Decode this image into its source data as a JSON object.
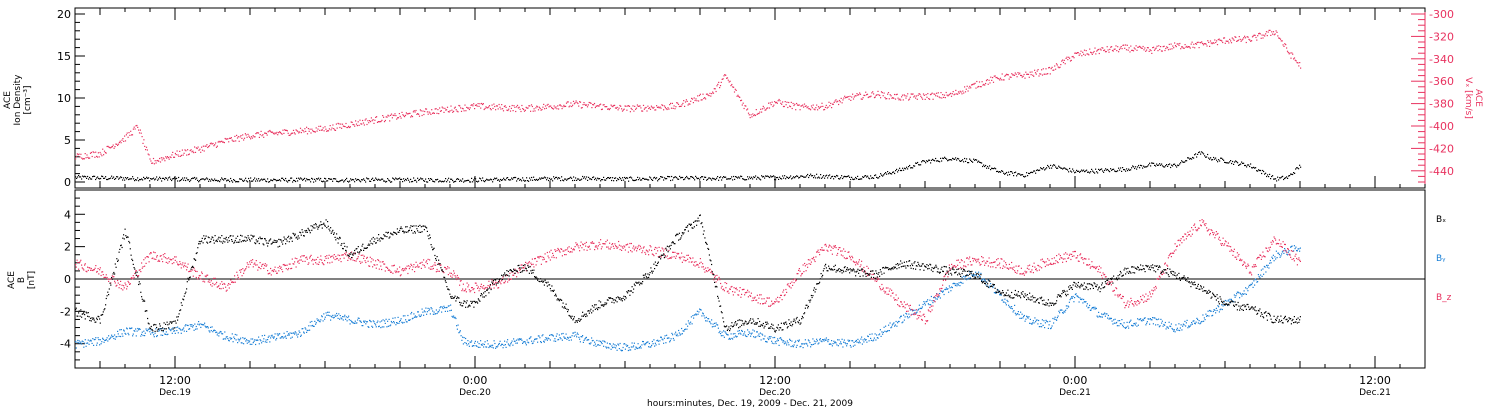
{
  "colors": {
    "black": "#000000",
    "red": "#e8325f",
    "blue": "#1a7fd6"
  },
  "time_axis": {
    "ticks": [
      {
        "t": 12,
        "line1": "12:00",
        "line2": "Dec.19"
      },
      {
        "t": 24,
        "line1": "0:00",
        "line2": "Dec.20"
      },
      {
        "t": 36,
        "line1": "12:00",
        "line2": "Dec.20"
      },
      {
        "t": 48,
        "line1": "0:00",
        "line2": "Dec.21"
      },
      {
        "t": 60,
        "line1": "12:00",
        "line2": "Dec.21"
      }
    ],
    "title": "hours:minutes, Dec. 19, 2009 - Dec. 21, 2009",
    "range_hours": [
      8.0,
      62.0
    ]
  },
  "chart_data": [
    {
      "type": "scatter",
      "panel": "top",
      "ylabel_left": [
        "ACE",
        "Ion Density",
        "[cm⁻³]"
      ],
      "ylabel_right": [
        "ACE",
        "Vₓ [km/s]"
      ],
      "ylim_left": [
        0,
        20
      ],
      "yticks_left": [
        0,
        5,
        10,
        15,
        20
      ],
      "ylim_right": [
        -450,
        -300
      ],
      "yticks_right": [
        -440,
        -420,
        -400,
        -380,
        -360,
        -340,
        -320,
        -300
      ],
      "series": [
        {
          "axis": "left",
          "color": "#000000",
          "x": [
            8,
            10,
            12,
            14,
            16,
            18,
            20,
            22,
            24,
            26,
            28,
            30,
            32,
            34,
            36,
            37.5,
            39,
            40,
            41,
            41.5,
            42,
            43,
            44,
            45,
            46,
            47,
            48,
            49,
            50,
            51,
            52,
            53,
            53.5,
            54,
            55,
            56,
            56.5,
            57
          ],
          "y": [
            0.6,
            0.5,
            0.4,
            0.3,
            0.3,
            0.3,
            0.3,
            0.3,
            0.3,
            0.4,
            0.5,
            0.4,
            0.5,
            0.5,
            0.6,
            0.8,
            0.6,
            0.7,
            1.5,
            2.0,
            2.5,
            2.9,
            2.5,
            1.2,
            0.9,
            2.0,
            1.3,
            1.4,
            1.6,
            2.1,
            2.0,
            3.5,
            2.8,
            2.6,
            2.0,
            0.4,
            0.6,
            2.0
          ]
        },
        {
          "axis": "right",
          "color": "#e8325f",
          "x": [
            8,
            9,
            10,
            10.5,
            11,
            12,
            13,
            14,
            15,
            16,
            18,
            20,
            22,
            24,
            26,
            28,
            30,
            32,
            33.5,
            34,
            35,
            36,
            37,
            38,
            39,
            40,
            41,
            42,
            43,
            44,
            45,
            46,
            47,
            48,
            49,
            50,
            51,
            52,
            53,
            54,
            55,
            56,
            56.5,
            57
          ],
          "y": [
            -427,
            -424,
            -410,
            -400,
            -432,
            -425,
            -420,
            -413,
            -408,
            -406,
            -402,
            -394,
            -387,
            -382,
            -384,
            -380,
            -384,
            -382,
            -370,
            -355,
            -390,
            -378,
            -383,
            -382,
            -374,
            -371,
            -374,
            -373,
            -372,
            -363,
            -356,
            -354,
            -350,
            -336,
            -332,
            -330,
            -332,
            -328,
            -327,
            -323,
            -322,
            -315,
            -333,
            -346
          ]
        }
      ]
    },
    {
      "type": "scatter",
      "panel": "bottom",
      "ylabel_left": [
        "ACE",
        "B",
        "[nT]"
      ],
      "ylim": [
        -5.5,
        5.5
      ],
      "yticks": [
        -4,
        -2,
        0,
        2,
        4
      ],
      "legend": [
        "Bₓ",
        "Bᵧ",
        "B_z"
      ],
      "legend_placement": "right",
      "series": [
        {
          "name": "Bₓ",
          "color": "#000000",
          "x": [
            8,
            9,
            10,
            11,
            12,
            13,
            14,
            15,
            16,
            17,
            18,
            19,
            20,
            21,
            22,
            23,
            23.5,
            24,
            25,
            26,
            27,
            28,
            29,
            30,
            31,
            32,
            33,
            34,
            35,
            36,
            37,
            38,
            39,
            40,
            41,
            42,
            43,
            44,
            45,
            46,
            47,
            48,
            49,
            50,
            51,
            52,
            53,
            54,
            55,
            56,
            57
          ],
          "y": [
            -2.0,
            -2.5,
            3.0,
            -3.0,
            -2.8,
            2.5,
            2.5,
            2.5,
            2.2,
            2.8,
            3.5,
            1.5,
            2.5,
            3.0,
            3.2,
            -1.0,
            -1.5,
            -1.5,
            0.2,
            0.8,
            -0.5,
            -2.5,
            -1.5,
            -1.0,
            0.5,
            2.5,
            3.8,
            -3.0,
            -2.5,
            -3.0,
            -2.5,
            0.8,
            0.5,
            0.3,
            1.0,
            0.8,
            0.5,
            0.3,
            -0.8,
            -1.0,
            -1.5,
            -0.3,
            -0.5,
            0.5,
            0.8,
            0.3,
            -0.5,
            -1.5,
            -1.8,
            -2.5,
            -2.5
          ]
        },
        {
          "name": "Bᵧ",
          "color": "#1a7fd6",
          "x": [
            8,
            9,
            10,
            11,
            12,
            13,
            14,
            15,
            16,
            17,
            18,
            19,
            20,
            21,
            22,
            23,
            23.5,
            24,
            25,
            26,
            27,
            28,
            29,
            30,
            31,
            32,
            33,
            34,
            35,
            36,
            37,
            38,
            39,
            40,
            41,
            42,
            43,
            44,
            45,
            46,
            47,
            48,
            49,
            50,
            51,
            52,
            53,
            54,
            55,
            56,
            57
          ],
          "y": [
            -4.0,
            -3.8,
            -3.2,
            -3.3,
            -3.2,
            -2.8,
            -3.5,
            -3.8,
            -3.6,
            -3.3,
            -2.2,
            -2.5,
            -2.8,
            -2.5,
            -2.0,
            -1.8,
            -3.8,
            -4.0,
            -4.0,
            -3.8,
            -3.6,
            -3.5,
            -4.0,
            -4.2,
            -4.0,
            -3.5,
            -2.0,
            -3.5,
            -3.3,
            -3.8,
            -4.0,
            -3.8,
            -4.0,
            -3.5,
            -2.5,
            -1.5,
            -0.5,
            0.5,
            -1.0,
            -2.5,
            -2.8,
            -1.0,
            -2.2,
            -2.8,
            -2.5,
            -3.0,
            -2.5,
            -1.5,
            -0.5,
            1.5,
            2.0
          ]
        },
        {
          "name": "B_z",
          "color": "#e8325f",
          "x": [
            8,
            9,
            10,
            11,
            12,
            13,
            14,
            15,
            16,
            17,
            18,
            19,
            20,
            21,
            22,
            23,
            23.5,
            24,
            25,
            26,
            27,
            28,
            29,
            30,
            31,
            32,
            33,
            34,
            35,
            36,
            37,
            38,
            39,
            40,
            41,
            42,
            43,
            44,
            45,
            46,
            47,
            48,
            49,
            50,
            51,
            52,
            53,
            54,
            55,
            56,
            57
          ],
          "y": [
            1.0,
            0.5,
            -0.5,
            1.5,
            1.2,
            0.2,
            -0.5,
            1.0,
            0.5,
            1.2,
            1.2,
            1.5,
            1.0,
            0.5,
            1.0,
            0.5,
            -0.5,
            -0.5,
            -0.2,
            0.8,
            1.5,
            2.0,
            2.2,
            2.0,
            1.8,
            1.5,
            1.0,
            -0.5,
            -1.0,
            -1.5,
            0.5,
            2.0,
            1.5,
            0.0,
            -1.5,
            -2.5,
            0.8,
            1.2,
            1.0,
            0.5,
            1.2,
            1.5,
            0.5,
            -1.5,
            -1.0,
            2.0,
            3.5,
            2.2,
            0.5,
            2.5,
            1.0
          ]
        }
      ]
    }
  ]
}
